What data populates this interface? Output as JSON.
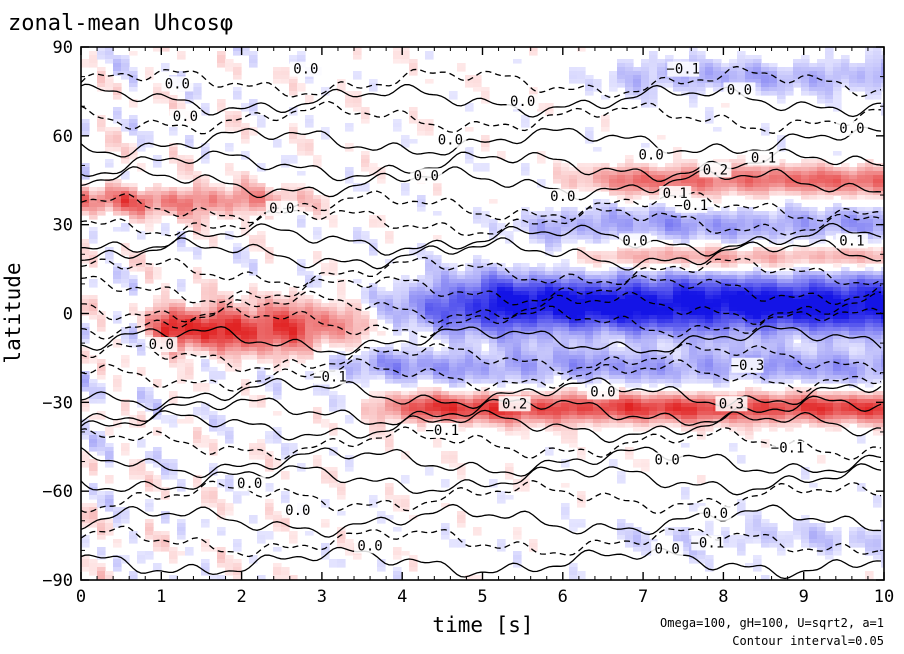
{
  "chart_data": {
    "type": "heatmap",
    "title": "zonal-mean Uhcosφ",
    "xlabel": "time [s]",
    "ylabel": "latitude",
    "xlim": [
      0,
      10
    ],
    "ylim": [
      -90,
      90
    ],
    "x_ticks": [
      "0",
      "1",
      "2",
      "3",
      "4",
      "5",
      "6",
      "7",
      "8",
      "9",
      "10"
    ],
    "y_ticks": [
      "90",
      "60",
      "30",
      "0",
      "−30",
      "−60",
      "−90"
    ],
    "y_tick_values": [
      90,
      60,
      30,
      0,
      -30,
      -60,
      -90
    ],
    "annotation_params": "Omega=100, gH=100, U=sqrt2, a=1",
    "annotation_interval": "Contour interval=0.05",
    "colors": {
      "positive": "#e03030",
      "negative": "#1a1ae6",
      "zero": "#ffffff"
    },
    "contour_labels": [
      {
        "text": "0.0",
        "t": 1.2,
        "lat": 76
      },
      {
        "text": "0.0",
        "t": 2.8,
        "lat": 81
      },
      {
        "text": "0.0",
        "t": 5.5,
        "lat": 70
      },
      {
        "text": "−0.1",
        "t": 7.5,
        "lat": 81
      },
      {
        "text": "0.0",
        "t": 8.2,
        "lat": 74
      },
      {
        "text": "0.0",
        "t": 9.6,
        "lat": 61
      },
      {
        "text": "0.0",
        "t": 1.3,
        "lat": 65
      },
      {
        "text": "0.0",
        "t": 4.6,
        "lat": 57
      },
      {
        "text": "0.0",
        "t": 4.3,
        "lat": 45
      },
      {
        "text": "0.0",
        "t": 7.1,
        "lat": 52
      },
      {
        "text": "0.1",
        "t": 8.5,
        "lat": 51
      },
      {
        "text": "0.2",
        "t": 7.9,
        "lat": 47
      },
      {
        "text": "0.0",
        "t": 6.0,
        "lat": 38
      },
      {
        "text": "0.1",
        "t": 7.4,
        "lat": 39
      },
      {
        "text": "−0.1",
        "t": 7.6,
        "lat": 35
      },
      {
        "text": "0.0",
        "t": 2.5,
        "lat": 34
      },
      {
        "text": "0.0",
        "t": 6.9,
        "lat": 23
      },
      {
        "text": "0.1",
        "t": 9.6,
        "lat": 23
      },
      {
        "text": "0.0",
        "t": 1.0,
        "lat": -12
      },
      {
        "text": "−0.1",
        "t": 3.1,
        "lat": -23
      },
      {
        "text": "0.2",
        "t": 5.4,
        "lat": -32
      },
      {
        "text": "0.0",
        "t": 6.5,
        "lat": -28
      },
      {
        "text": "0.3",
        "t": 8.1,
        "lat": -32
      },
      {
        "text": "−0.3",
        "t": 8.3,
        "lat": -19
      },
      {
        "text": "−0.1",
        "t": 4.5,
        "lat": -41
      },
      {
        "text": "0.0",
        "t": 7.3,
        "lat": -51
      },
      {
        "text": "−0.1",
        "t": 8.8,
        "lat": -47
      },
      {
        "text": "0.0",
        "t": 2.1,
        "lat": -59
      },
      {
        "text": "0.0",
        "t": 2.7,
        "lat": -68
      },
      {
        "text": "0.0",
        "t": 3.6,
        "lat": -80
      },
      {
        "text": "0.0",
        "t": 7.9,
        "lat": -69
      },
      {
        "text": "0.0",
        "t": 7.3,
        "lat": -81
      },
      {
        "text": "−0.1",
        "t": 7.8,
        "lat": -79
      }
    ]
  }
}
